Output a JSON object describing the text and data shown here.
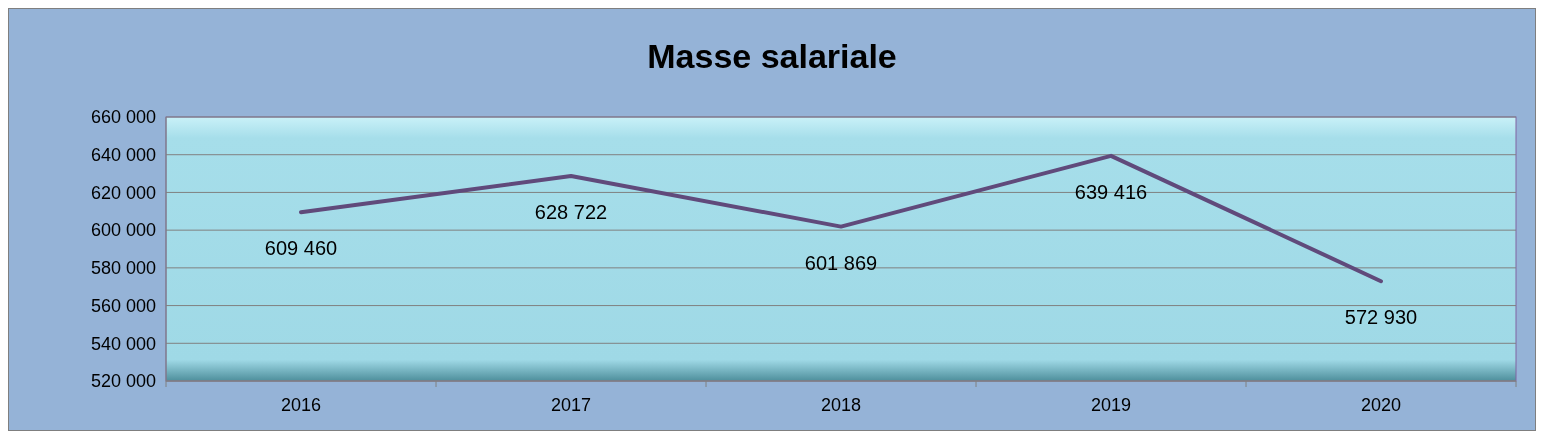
{
  "chart_data": {
    "type": "line",
    "title": "Masse salariale",
    "categories": [
      "2016",
      "2017",
      "2018",
      "2019",
      "2020"
    ],
    "series": [
      {
        "color": "#604a7b",
        "values": [
          609460,
          628722,
          601869,
          639416,
          572930
        ],
        "value_labels": [
          "609 460",
          "628 722",
          "601 869",
          "639 416",
          "572 930"
        ]
      }
    ],
    "ylim": [
      520000,
      660000
    ],
    "yticks": [
      {
        "value": 520000,
        "label": "520 000"
      },
      {
        "value": 540000,
        "label": "540 000"
      },
      {
        "value": 560000,
        "label": "560 000"
      },
      {
        "value": 580000,
        "label": "580 000"
      },
      {
        "value": 600000,
        "label": "600 000"
      },
      {
        "value": 620000,
        "label": "620 000"
      },
      {
        "value": 640000,
        "label": "640 000"
      },
      {
        "value": 660000,
        "label": "660 000"
      }
    ],
    "grid": "y",
    "marker": "none",
    "line_style": "solid"
  }
}
